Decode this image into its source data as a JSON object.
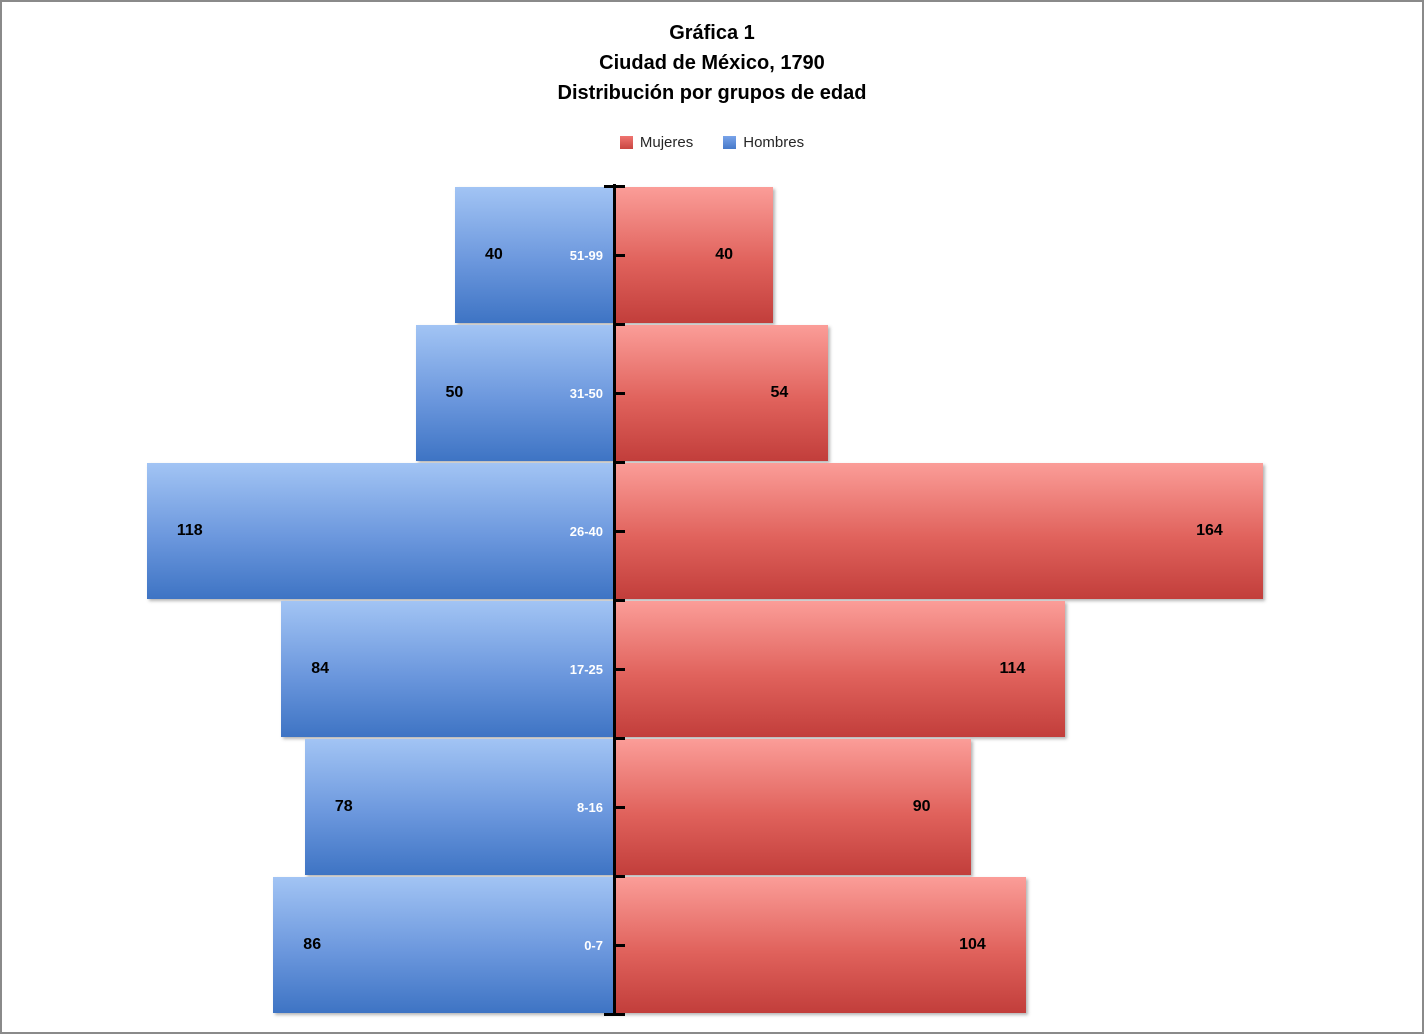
{
  "title": {
    "line1": "Gráfica 1",
    "line2": "Ciudad de México, 1790",
    "line3": "Distribución por grupos de edad"
  },
  "legend": [
    {
      "label": "Mujeres",
      "color": "#d9534e",
      "side": "right"
    },
    {
      "label": "Hombres",
      "color": "#5b8bd6",
      "side": "left"
    }
  ],
  "colors": {
    "hombres_bar_top": "#a2c4f4",
    "hombres_bar_bottom": "#3e74c4",
    "mujeres_bar_top": "#fb9d98",
    "mujeres_bar_bottom": "#c23e3b",
    "axis": "#000000",
    "category_label_text": "#ffffff",
    "value_label_text": "#000000",
    "frame_border": "#8a8a8a"
  },
  "chart_data": {
    "type": "bar",
    "subtype": "population-pyramid",
    "orientation": "horizontal",
    "title": "Gráfica 1 / Ciudad de México, 1790 / Distribución por grupos de edad",
    "categories": [
      "51-99",
      "31-50",
      "26-40",
      "17-25",
      "8-16",
      "0-7"
    ],
    "series": [
      {
        "name": "Hombres",
        "side": "left",
        "values": [
          40,
          50,
          118,
          84,
          78,
          86
        ]
      },
      {
        "name": "Mujeres",
        "side": "right",
        "values": [
          40,
          54,
          164,
          114,
          90,
          104
        ]
      }
    ],
    "value_labels_shown": true,
    "category_labels_position": "inside-left-bar-near-axis",
    "legend_position": "top-center",
    "axis": {
      "center_line": true,
      "ticks": "category boundaries and midpoints",
      "xlim_each_side": [
        0,
        170
      ]
    },
    "grid": false
  }
}
